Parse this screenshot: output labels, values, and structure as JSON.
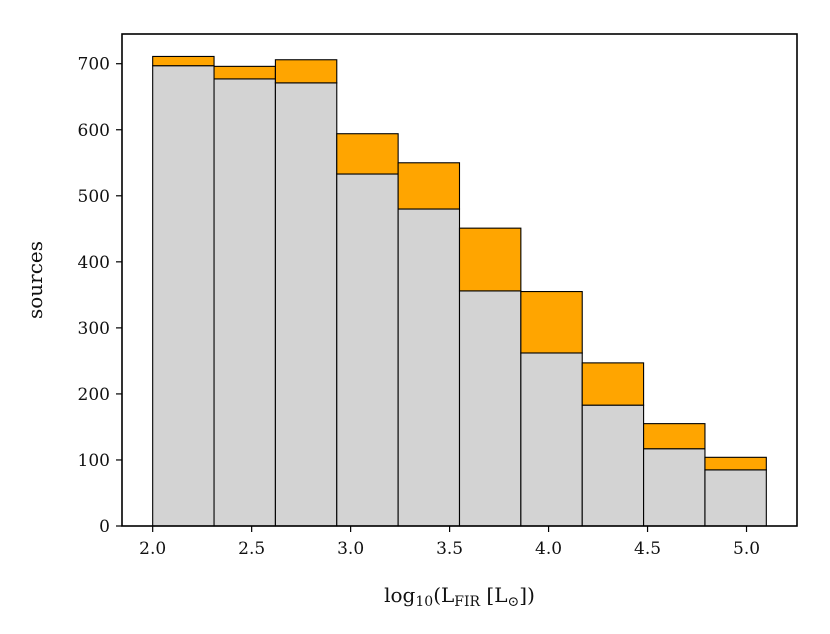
{
  "chart_data": {
    "type": "bar",
    "stacked": true,
    "bin_edges": [
      2.0,
      2.31,
      2.62,
      2.93,
      3.24,
      3.55,
      3.86,
      4.17,
      4.48,
      4.79,
      5.1
    ],
    "series": [
      {
        "color": "#d3d3d3",
        "values": [
          697,
          677,
          671,
          533,
          480,
          356,
          262,
          183,
          117,
          85
        ]
      },
      {
        "color": "#ffa500",
        "values": [
          14,
          19,
          35,
          61,
          70,
          95,
          93,
          64,
          38,
          19
        ]
      }
    ],
    "totals": [
      711,
      696,
      706,
      594,
      550,
      451,
      355,
      247,
      155,
      104
    ],
    "xlabel": "log10(LFIR [L⊙])",
    "ylabel": "sources",
    "xlim": [
      1.845,
      5.255
    ],
    "ylim": [
      0,
      745
    ],
    "xticks": [
      "2.0",
      "2.5",
      "3.0",
      "3.5",
      "4.0",
      "4.5",
      "5.0"
    ],
    "yticks": [
      "0",
      "100",
      "200",
      "300",
      "400",
      "500",
      "600",
      "700"
    ],
    "grid": false,
    "legend": "none"
  }
}
